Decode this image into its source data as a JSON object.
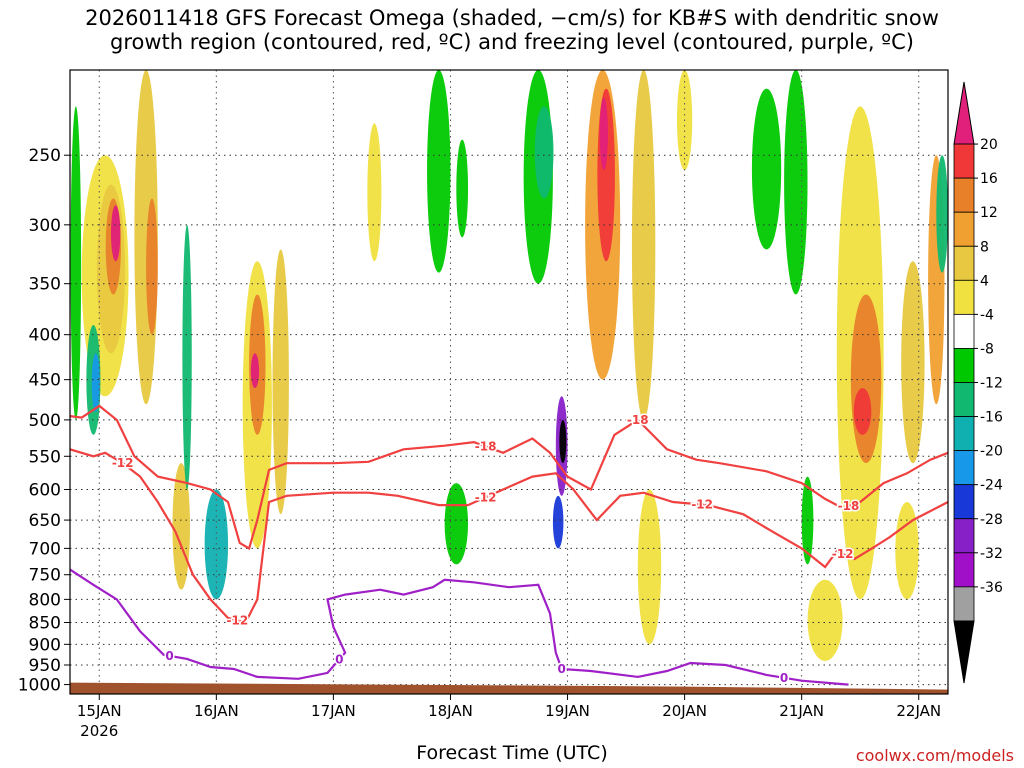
{
  "title": {
    "line1": "2026011418 GFS Forecast Omega (shaded, −cm/s) for KB#S with dendritic snow",
    "line2": "growth region (contoured, red, ºC) and freezing level (contoured, purple, ºC)"
  },
  "xlabel": "Forecast Time (UTC)",
  "credit": "coolwx.com/models",
  "chart_data": {
    "type": "heatmap",
    "title": "2026011418 GFS Forecast Omega (shaded, −cm/s) for KB#S with dendritic snow growth region (contoured, red, ºC) and freezing level (contoured, purple, ºC)",
    "xlabel": "Forecast Time (UTC)",
    "ylabel": "",
    "x_ticks": [
      "15JAN",
      "16JAN",
      "17JAN",
      "18JAN",
      "19JAN",
      "20JAN",
      "21JAN",
      "22JAN"
    ],
    "x_tick_year": "2026",
    "x_range_days": [
      14.75,
      22.25
    ],
    "y_ticks": [
      "250",
      "300",
      "350",
      "400",
      "450",
      "500",
      "550",
      "600",
      "650",
      "700",
      "750",
      "800",
      "850",
      "900",
      "950",
      "1000"
    ],
    "y_values": [
      250,
      300,
      350,
      400,
      450,
      500,
      550,
      600,
      650,
      700,
      750,
      800,
      850,
      900,
      950,
      1000
    ],
    "y_range_hpa": [
      200,
      1025
    ],
    "colorbar": {
      "labels": [
        "20",
        "16",
        "12",
        "8",
        "4",
        "-4",
        "-8",
        "-12",
        "-16",
        "-20",
        "-24",
        "-28",
        "-32",
        "-36"
      ],
      "colors": [
        "#e0207a",
        "#f03838",
        "#e8802a",
        "#f0a030",
        "#e8c840",
        "#f0e040",
        "#ffffff",
        "#00c800",
        "#10b870",
        "#10b0b0",
        "#1898e8",
        "#1838d8",
        "#8820c8",
        "#a010c8",
        "#a0a0a0",
        "#000000"
      ]
    },
    "contours": {
      "red_labels": [
        "-12",
        "-18"
      ],
      "purple_labels": [
        "0"
      ]
    },
    "series": [
      {
        "name": "-18 ºC contour",
        "points": [
          [
            14.75,
            495
          ],
          [
            14.85,
            497
          ],
          [
            15.0,
            482
          ],
          [
            15.15,
            500
          ],
          [
            15.3,
            550
          ],
          [
            15.5,
            580
          ],
          [
            15.75,
            590
          ],
          [
            15.95,
            600
          ],
          [
            16.1,
            620
          ],
          [
            16.2,
            690
          ],
          [
            16.28,
            700
          ],
          [
            16.35,
            650
          ],
          [
            16.45,
            570
          ],
          [
            16.6,
            560
          ],
          [
            17.0,
            560
          ],
          [
            17.3,
            558
          ],
          [
            17.6,
            540
          ],
          [
            17.95,
            535
          ],
          [
            18.2,
            530
          ],
          [
            18.45,
            545
          ],
          [
            18.7,
            525
          ],
          [
            18.85,
            545
          ],
          [
            19.0,
            580
          ],
          [
            19.2,
            600
          ],
          [
            19.4,
            520
          ],
          [
            19.6,
            500
          ],
          [
            19.85,
            540
          ],
          [
            20.1,
            555
          ],
          [
            20.3,
            560
          ],
          [
            20.7,
            572
          ],
          [
            21.0,
            590
          ],
          [
            21.2,
            615
          ],
          [
            21.35,
            630
          ],
          [
            21.5,
            620
          ],
          [
            21.7,
            590
          ],
          [
            21.9,
            575
          ],
          [
            22.1,
            555
          ],
          [
            22.25,
            545
          ]
        ]
      },
      {
        "name": "-12 ºC contour",
        "points": [
          [
            14.75,
            540
          ],
          [
            14.95,
            550
          ],
          [
            15.05,
            545
          ],
          [
            15.2,
            560
          ],
          [
            15.35,
            580
          ],
          [
            15.5,
            620
          ],
          [
            15.65,
            670
          ],
          [
            15.8,
            750
          ],
          [
            15.95,
            800
          ],
          [
            16.1,
            840
          ],
          [
            16.25,
            850
          ],
          [
            16.35,
            800
          ],
          [
            16.45,
            620
          ],
          [
            16.6,
            610
          ],
          [
            17.0,
            605
          ],
          [
            17.3,
            605
          ],
          [
            17.55,
            610
          ],
          [
            17.9,
            625
          ],
          [
            18.15,
            625
          ],
          [
            18.45,
            600
          ],
          [
            18.7,
            580
          ],
          [
            18.9,
            575
          ],
          [
            19.05,
            600
          ],
          [
            19.25,
            650
          ],
          [
            19.45,
            610
          ],
          [
            19.65,
            605
          ],
          [
            19.9,
            620
          ],
          [
            20.2,
            625
          ],
          [
            20.5,
            640
          ],
          [
            20.75,
            670
          ],
          [
            21.0,
            700
          ],
          [
            21.2,
            735
          ],
          [
            21.3,
            705
          ],
          [
            21.45,
            720
          ],
          [
            21.6,
            700
          ],
          [
            21.75,
            680
          ],
          [
            21.95,
            650
          ],
          [
            22.25,
            620
          ]
        ]
      },
      {
        "name": "0 ºC freezing level",
        "points": [
          [
            14.75,
            740
          ],
          [
            14.95,
            770
          ],
          [
            15.15,
            800
          ],
          [
            15.35,
            870
          ],
          [
            15.55,
            925
          ],
          [
            15.75,
            935
          ],
          [
            15.95,
            955
          ],
          [
            16.15,
            960
          ],
          [
            16.35,
            980
          ],
          [
            16.7,
            985
          ],
          [
            16.95,
            970
          ],
          [
            17.1,
            920
          ],
          [
            17.0,
            860
          ],
          [
            16.95,
            800
          ],
          [
            17.1,
            790
          ],
          [
            17.4,
            780
          ],
          [
            17.6,
            790
          ],
          [
            17.85,
            775
          ],
          [
            17.95,
            760
          ],
          [
            18.2,
            765
          ],
          [
            18.5,
            775
          ],
          [
            18.75,
            770
          ],
          [
            18.85,
            830
          ],
          [
            18.9,
            920
          ],
          [
            18.95,
            960
          ],
          [
            19.2,
            965
          ],
          [
            19.6,
            980
          ],
          [
            19.85,
            965
          ],
          [
            20.05,
            945
          ],
          [
            20.35,
            950
          ],
          [
            20.7,
            975
          ],
          [
            21.0,
            990
          ],
          [
            21.4,
            1000
          ]
        ]
      }
    ],
    "terrain_surface_hpa": 1000
  }
}
